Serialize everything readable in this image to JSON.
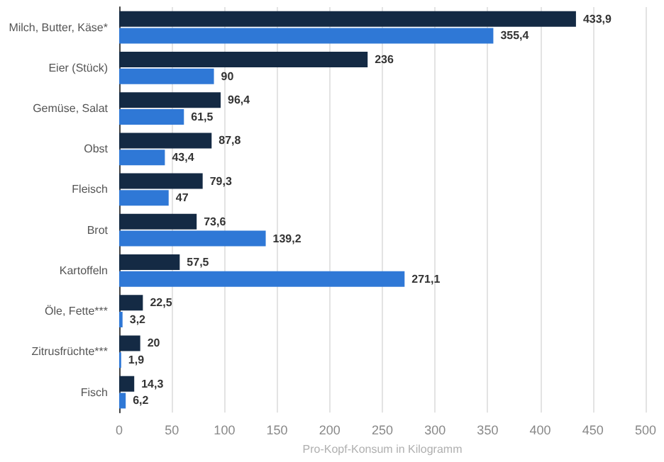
{
  "chart_data": {
    "type": "bar",
    "orientation": "horizontal",
    "xlabel": "Pro-Kopf-Konsum in Kilogramm",
    "categories": [
      "Milch, Butter, Käse*",
      "Eier (Stück)",
      "Gemüse, Salat",
      "Obst",
      "Fleisch",
      "Brot",
      "Kartoffeln",
      "Öle, Fette***",
      "Zitrusfrüchte***",
      "Fisch"
    ],
    "series": [
      {
        "color": "#142a44",
        "values": [
          433.9,
          236,
          96.4,
          87.8,
          79.3,
          73.6,
          57.5,
          22.5,
          20,
          14.3
        ],
        "value_labels": [
          "433,9",
          "236",
          "96,4",
          "87,8",
          "79,3",
          "73,6",
          "57,5",
          "22,5",
          "20",
          "14,3"
        ]
      },
      {
        "color": "#2f78d6",
        "values": [
          355.4,
          90,
          61.5,
          43.4,
          47,
          139.2,
          271.1,
          3.2,
          1.9,
          6.2
        ],
        "value_labels": [
          "355,4",
          "90",
          "61,5",
          "43,4",
          "47",
          "139,2",
          "271,1",
          "3,2",
          "1,9",
          "6,2"
        ]
      }
    ],
    "xlim": [
      0,
      500
    ],
    "xticks": [
      0,
      50,
      100,
      150,
      200,
      250,
      300,
      350,
      400,
      450,
      500
    ],
    "grid": "x"
  }
}
